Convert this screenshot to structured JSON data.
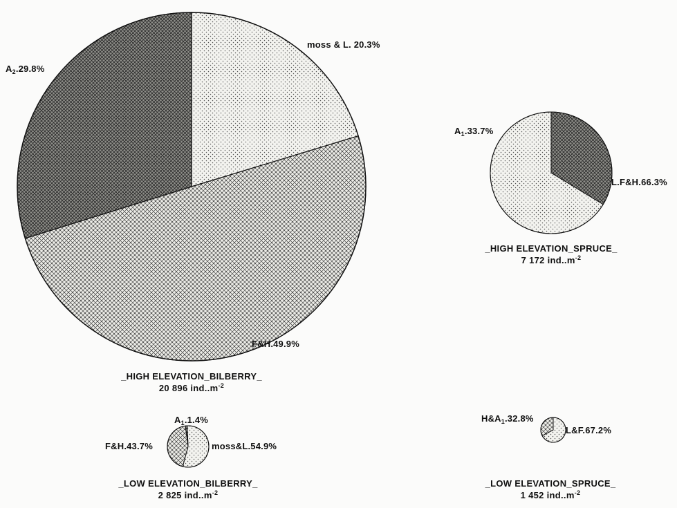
{
  "chart_data": [
    {
      "type": "pie",
      "title": "_HIGH ELEVATION_BILBERRY_",
      "subtitle": "20 896 ind..m",
      "subtitle_exp": "-2",
      "slices": [
        {
          "label": "moss & L. 20.3%",
          "value": 20.3,
          "fill": "light"
        },
        {
          "label": "F&H.49.9%",
          "value": 49.9,
          "fill": "medium"
        },
        {
          "label": "A2.29.8%",
          "value": 29.8,
          "fill": "dark"
        }
      ]
    },
    {
      "type": "pie",
      "title": "_HIGH ELEVATION_SPRUCE_",
      "subtitle": "7 172 ind..m",
      "subtitle_exp": "-2",
      "slices": [
        {
          "label": "L.F&H.66.3%",
          "value": 66.3,
          "fill": "light"
        },
        {
          "label": "A1.33.7%",
          "value": 33.7,
          "fill": "dark"
        }
      ]
    },
    {
      "type": "pie",
      "title": "_LOW ELEVATION_BILBERRY_",
      "subtitle": "2 825 ind..m",
      "subtitle_exp": "-2",
      "slices": [
        {
          "label": "moss&L.54.9%",
          "value": 54.9,
          "fill": "light"
        },
        {
          "label": "F&H.43.7%",
          "value": 43.7,
          "fill": "medium"
        },
        {
          "label": "A1.1.4%",
          "value": 1.4,
          "fill": "dark"
        }
      ]
    },
    {
      "type": "pie",
      "title": "_LOW ELEVATION_SPRUCE_",
      "subtitle": "1 452 ind..m",
      "subtitle_exp": "-2",
      "slices": [
        {
          "label": "L&F.67.2%",
          "value": 67.2,
          "fill": "light"
        },
        {
          "label": "H&A1.32.8%",
          "value": 32.8,
          "fill": "medium"
        }
      ]
    }
  ],
  "colors": {
    "ink": "#111111",
    "light": "#f1f1ec",
    "medium": "#d8d8d2",
    "dark": "#8d8d88"
  }
}
